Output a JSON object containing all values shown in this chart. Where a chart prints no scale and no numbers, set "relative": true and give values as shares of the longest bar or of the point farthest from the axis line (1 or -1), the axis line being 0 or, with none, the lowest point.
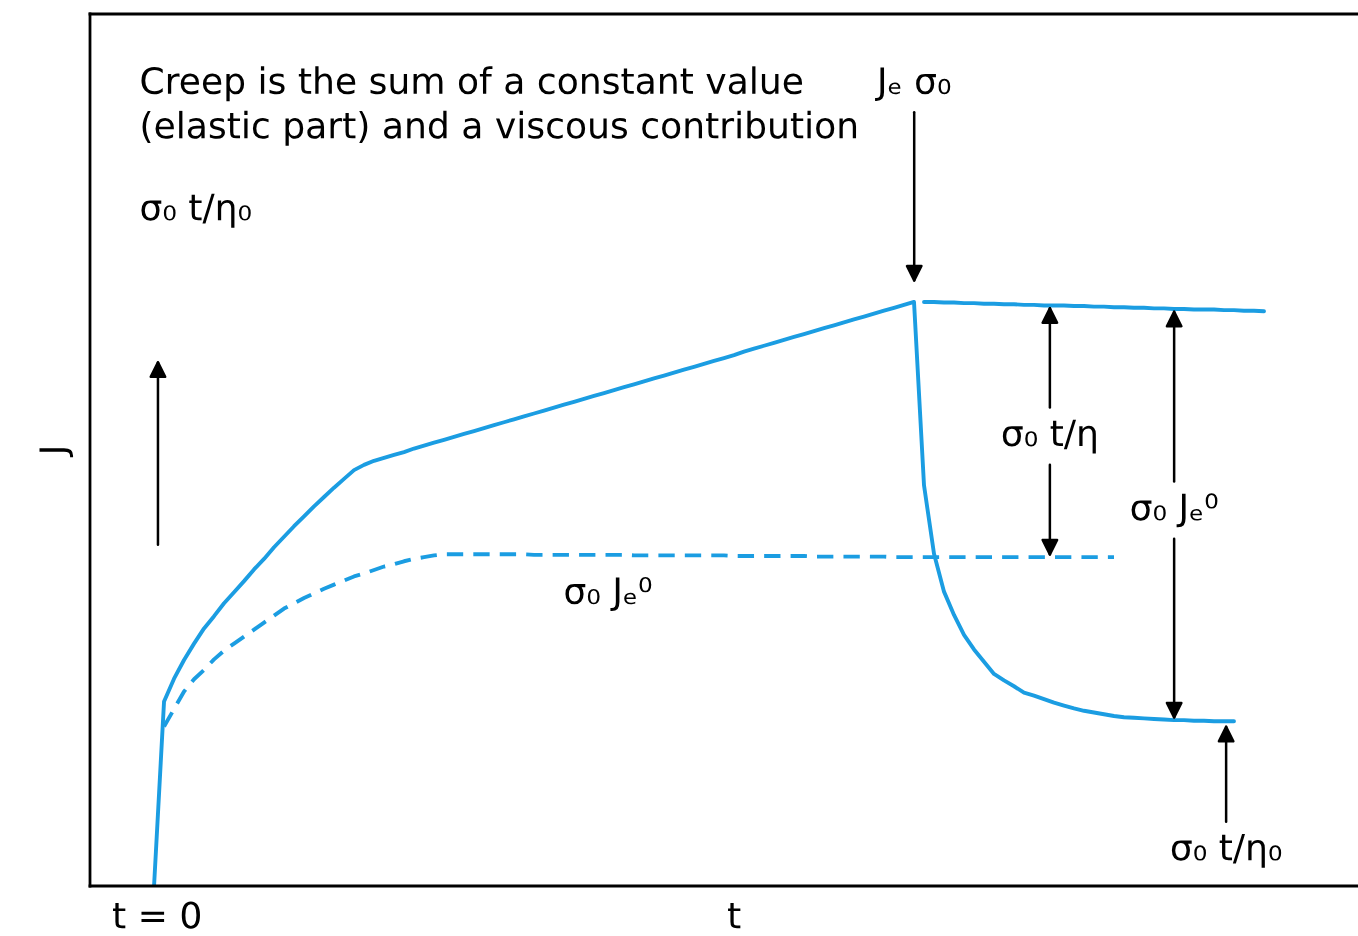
{
  "chart_data": {
    "type": "line",
    "relative": true,
    "xlabel": "t",
    "ylabel": "J",
    "categories": [
      null,
      null,
      null,
      null,
      null,
      null,
      null,
      null,
      null,
      null,
      null,
      null,
      null,
      null,
      null,
      null,
      null,
      null,
      null,
      null,
      null,
      null,
      null,
      null,
      null,
      null,
      null,
      null,
      null,
      null,
      null,
      null,
      null,
      null,
      null,
      null,
      null,
      null,
      null,
      null,
      null,
      null,
      null,
      null,
      null,
      null,
      null,
      null,
      null,
      null,
      null,
      null,
      null,
      null,
      null,
      null,
      null,
      null,
      null,
      null,
      null,
      null,
      null,
      null,
      null,
      null,
      null,
      null,
      null,
      null,
      null,
      null,
      null,
      null,
      null,
      null,
      null,
      null,
      null,
      null,
      null,
      null,
      null,
      null,
      null,
      null,
      null,
      null,
      null,
      null,
      null,
      null,
      null,
      null,
      null,
      null,
      null,
      null,
      null,
      null,
      null,
      null,
      null,
      null,
      null,
      null,
      null,
      null,
      null,
      null,
      null,
      null
    ],
    "series": [
      {
        "color": "#1b9de2",
        "values": [
          0,
          0.316,
          0.355,
          0.387,
          0.415,
          0.441,
          0.462,
          0.484,
          0.503,
          0.522,
          0.542,
          0.56,
          0.58,
          0.598,
          0.616,
          0.633,
          0.65,
          0.666,
          0.682,
          0.697,
          0.712,
          0.721,
          0.728,
          0.733,
          0.738,
          0.743,
          0.749,
          0.754,
          0.759,
          0.764,
          0.769,
          0.774,
          0.779,
          0.784,
          0.789,
          0.794,
          0.799,
          0.804,
          0.809,
          0.814,
          0.819,
          0.824,
          0.829,
          0.834,
          0.839,
          0.844,
          0.849,
          0.854,
          0.859,
          0.864,
          0.869,
          0.874,
          0.879,
          0.884,
          0.889,
          0.894,
          0.899,
          0.904,
          0.909,
          0.915,
          0.92,
          0.925,
          0.93,
          0.935,
          0.94,
          0.945,
          0.95,
          0.955,
          0.96,
          0.965,
          0.97,
          0.975,
          0.98,
          0.985,
          0.99,
          0.995,
          1.0,
          0.686,
          0.569,
          0.504,
          0.464,
          0.43,
          0.405,
          0.384,
          0.363,
          0.352,
          0.342,
          0.331,
          0.326,
          0.32,
          0.314,
          0.309,
          0.304,
          0.3,
          0.297,
          0.294,
          0.291,
          0.289,
          0.288,
          0.287,
          0.286,
          0.285,
          0.284,
          0.284,
          0.283,
          0.283,
          0.282,
          0.282,
          0.282,
          null,
          null,
          null
        ]
      },
      {
        "color": "#1b9de2",
        "values": [
          null,
          null,
          null,
          null,
          null,
          null,
          null,
          null,
          null,
          null,
          null,
          null,
          null,
          null,
          null,
          null,
          null,
          null,
          null,
          null,
          null,
          null,
          null,
          null,
          null,
          null,
          null,
          null,
          null,
          null,
          null,
          null,
          null,
          null,
          null,
          null,
          null,
          null,
          null,
          null,
          null,
          null,
          null,
          null,
          null,
          null,
          null,
          null,
          null,
          null,
          null,
          null,
          null,
          null,
          null,
          null,
          null,
          null,
          null,
          null,
          null,
          null,
          null,
          null,
          null,
          null,
          null,
          null,
          null,
          null,
          null,
          null,
          null,
          null,
          null,
          null,
          null,
          1.0,
          1.0,
          0.999,
          0.999,
          0.998,
          0.998,
          0.997,
          0.997,
          0.996,
          0.996,
          0.995,
          0.995,
          0.994,
          0.994,
          0.994,
          0.993,
          0.993,
          0.992,
          0.992,
          0.991,
          0.991,
          0.99,
          0.99,
          0.989,
          0.989,
          0.988,
          0.988,
          0.987,
          0.987,
          0.987,
          0.986,
          0.986,
          0.985,
          0.985,
          0.984
        ]
      },
      {
        "color": "#1b9de2",
        "line_style": "dashed",
        "values": [
          null,
          0.273,
          0.303,
          0.333,
          0.354,
          0.37,
          0.388,
          0.403,
          0.415,
          0.427,
          0.439,
          0.451,
          0.463,
          0.475,
          0.484,
          0.493,
          0.501,
          0.509,
          0.516,
          0.523,
          0.53,
          0.535,
          0.541,
          0.547,
          0.551,
          0.556,
          0.56,
          0.563,
          0.566,
          0.568,
          0.568,
          0.568,
          0.568,
          0.568,
          0.568,
          0.568,
          0.568,
          0.568,
          0.567,
          0.567,
          0.567,
          0.567,
          0.567,
          0.567,
          0.567,
          0.567,
          0.567,
          0.567,
          0.566,
          0.566,
          0.566,
          0.566,
          0.566,
          0.566,
          0.566,
          0.566,
          0.566,
          0.566,
          0.565,
          0.565,
          0.565,
          0.565,
          0.565,
          0.565,
          0.565,
          0.565,
          0.564,
          0.564,
          0.564,
          0.564,
          0.564,
          0.564,
          0.564,
          0.564,
          0.563,
          0.563,
          0.563,
          0.563,
          0.563,
          0.563,
          0.563,
          0.563,
          0.563,
          0.563,
          0.563,
          0.563,
          0.563,
          0.563,
          0.563,
          0.563,
          0.563,
          0.563,
          0.563,
          0.563,
          0.563,
          0.563,
          0.563,
          null,
          null,
          null,
          null,
          null,
          null,
          null,
          null,
          null,
          null,
          null,
          null,
          null,
          null,
          null
        ]
      }
    ],
    "annotations": [
      "Creep is the sum of a constant value\n(elastic part) and a viscous contribution",
      "Jₑ σ₀",
      "σ₀ t/η₀",
      "σ₀ Jₑ⁰",
      "σ₀ t/η",
      "σ₀ Jₑ⁰",
      "σ₀ t/η₀",
      "t = 0"
    ]
  }
}
